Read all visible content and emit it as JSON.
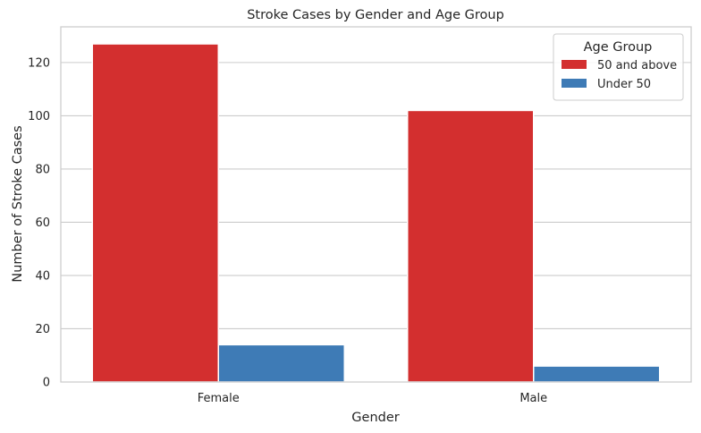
{
  "chart_data": {
    "type": "bar",
    "title": "Stroke Cases by Gender and Age Group",
    "xlabel": "Gender",
    "ylabel": "Number of Stroke Cases",
    "categories": [
      "Female",
      "Male"
    ],
    "series": [
      {
        "name": "50 and above",
        "values": [
          127,
          102
        ],
        "color": "#d32f2f"
      },
      {
        "name": "Under 50",
        "values": [
          14,
          6
        ],
        "color": "#3e7bb6"
      }
    ],
    "ylim": [
      0,
      133.4
    ],
    "yticks": [
      0,
      20,
      40,
      60,
      80,
      100,
      120
    ],
    "grid": "horizontal",
    "legend": {
      "title": "Age Group",
      "placement": "top-right"
    },
    "colors": {
      "axis_edge": "#cccccc",
      "grid": "#cccccc",
      "text": "#262626"
    }
  }
}
